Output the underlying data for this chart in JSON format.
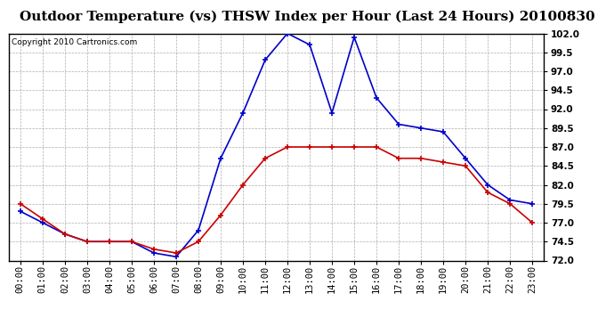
{
  "title": "Outdoor Temperature (vs) THSW Index per Hour (Last 24 Hours) 20100830",
  "copyright": "Copyright 2010 Cartronics.com",
  "hours": [
    "00:00",
    "01:00",
    "02:00",
    "03:00",
    "04:00",
    "05:00",
    "06:00",
    "07:00",
    "08:00",
    "09:00",
    "10:00",
    "11:00",
    "12:00",
    "13:00",
    "14:00",
    "15:00",
    "16:00",
    "17:00",
    "18:00",
    "19:00",
    "20:00",
    "21:00",
    "22:00",
    "23:00"
  ],
  "temp": [
    79.5,
    77.5,
    75.5,
    74.5,
    74.5,
    74.5,
    73.5,
    73.0,
    74.5,
    78.0,
    82.0,
    85.5,
    87.0,
    87.0,
    87.0,
    87.0,
    87.0,
    85.5,
    85.5,
    85.0,
    84.5,
    81.0,
    79.5,
    77.0
  ],
  "thsw": [
    78.5,
    77.0,
    75.5,
    74.5,
    74.5,
    74.5,
    73.0,
    72.5,
    76.0,
    85.5,
    91.5,
    98.5,
    102.0,
    100.5,
    91.5,
    101.5,
    93.5,
    90.0,
    89.5,
    89.0,
    85.5,
    82.0,
    80.0,
    79.5
  ],
  "temp_color": "#cc0000",
  "thsw_color": "#0000cc",
  "bg_color": "#ffffff",
  "grid_color": "#999999",
  "ylim": [
    72.0,
    102.0
  ],
  "yticks": [
    72.0,
    74.5,
    77.0,
    79.5,
    82.0,
    84.5,
    87.0,
    89.5,
    92.0,
    94.5,
    97.0,
    99.5,
    102.0
  ],
  "title_fontsize": 11,
  "copyright_fontsize": 6.5,
  "tick_fontsize": 7.5
}
